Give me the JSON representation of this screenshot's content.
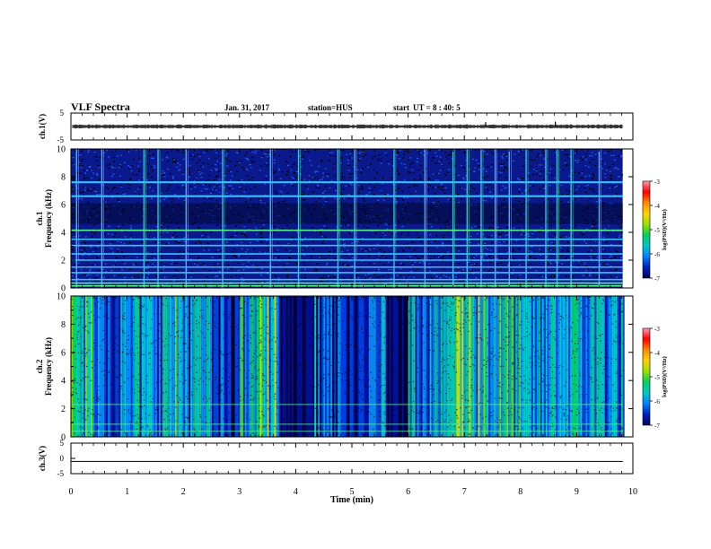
{
  "header": {
    "title": "VLF Spectra",
    "date": "Jan. 31, 2017",
    "station": "station=HUS",
    "start_label": "start",
    "start_ut": "UT =  8 : 40: 5"
  },
  "colorbar": {
    "label": "log(PSD)(V²/Hz)",
    "ticks": [
      "-3",
      "-4",
      "-5",
      "-6",
      "-7"
    ],
    "colors": [
      "#ff9aa8",
      "#ff0000",
      "#ff8a00",
      "#ffd400",
      "#9be000",
      "#00d060",
      "#00c8c8",
      "#0080ff",
      "#0020c0",
      "#000060"
    ]
  },
  "chart_data": [
    {
      "type": "line",
      "name": "ch1-waveform",
      "ylabel": "ch.1(V)",
      "ylim": [
        -5,
        5
      ],
      "yticks": [
        "5",
        "-5"
      ],
      "baseline": 0,
      "spikes": [
        {
          "x": 7.38,
          "y": 1.6
        },
        {
          "x": 8.62,
          "y": 1.8
        }
      ]
    },
    {
      "type": "heatmap",
      "name": "ch1-spectrogram",
      "ylabel": "Frequency (kHz)",
      "channel": "ch.1",
      "xlim": [
        0,
        10
      ],
      "ylim": [
        0,
        10
      ],
      "yticks": [
        "0",
        "2",
        "4",
        "6",
        "8",
        "10"
      ],
      "data_end_min": 9.82,
      "background": "#0a1a8c",
      "horizontal_lines_khz": [
        0.15,
        0.35,
        0.6,
        1.1,
        1.5,
        2.0,
        2.45,
        3.05,
        3.5,
        4.15,
        6.6,
        7.6
      ],
      "vertical_bursts_min": [
        0.1,
        0.55,
        1.3,
        1.55,
        2.05,
        2.7,
        3.55,
        4.05,
        4.75,
        5.05,
        5.75,
        6.3,
        6.8,
        7.05,
        7.3,
        7.55,
        7.8,
        8.1,
        8.45,
        8.65,
        8.9,
        9.4
      ]
    },
    {
      "type": "heatmap",
      "name": "ch2-spectrogram",
      "ylabel": "Frequency (kHz)",
      "channel": "ch.2",
      "xlim": [
        0,
        10
      ],
      "ylim": [
        0,
        10
      ],
      "yticks": [
        "0",
        "2",
        "4",
        "6",
        "8",
        "10"
      ],
      "data_end_min": 9.82,
      "background": "#000030",
      "activity_by_minute": [
        {
          "x0": 0.0,
          "x1": 0.5,
          "level": 0.75
        },
        {
          "x0": 0.5,
          "x1": 1.0,
          "level": 0.55
        },
        {
          "x0": 1.0,
          "x1": 1.5,
          "level": 0.6
        },
        {
          "x0": 1.5,
          "x1": 2.0,
          "level": 0.7
        },
        {
          "x0": 2.0,
          "x1": 2.5,
          "level": 0.65
        },
        {
          "x0": 2.5,
          "x1": 3.0,
          "level": 0.35
        },
        {
          "x0": 3.0,
          "x1": 3.3,
          "level": 0.7
        },
        {
          "x0": 3.3,
          "x1": 3.7,
          "level": 0.85
        },
        {
          "x0": 3.7,
          "x1": 4.3,
          "level": 0.2
        },
        {
          "x0": 4.3,
          "x1": 4.8,
          "level": 0.45
        },
        {
          "x0": 4.8,
          "x1": 5.3,
          "level": 0.3
        },
        {
          "x0": 5.3,
          "x1": 5.6,
          "level": 0.55
        },
        {
          "x0": 5.6,
          "x1": 6.0,
          "level": 0.2
        },
        {
          "x0": 6.0,
          "x1": 6.7,
          "level": 0.65
        },
        {
          "x0": 6.7,
          "x1": 7.4,
          "level": 0.95
        },
        {
          "x0": 7.4,
          "x1": 8.0,
          "level": 0.75
        },
        {
          "x0": 8.0,
          "x1": 8.5,
          "level": 0.6
        },
        {
          "x0": 8.5,
          "x1": 9.0,
          "level": 0.7
        },
        {
          "x0": 9.0,
          "x1": 9.5,
          "level": 0.65
        },
        {
          "x0": 9.5,
          "x1": 9.82,
          "level": 0.6
        }
      ],
      "horizontal_lines_khz": [
        0.4,
        0.9,
        2.3
      ]
    },
    {
      "type": "line",
      "name": "ch3-waveform",
      "ylabel": "ch.3(V)",
      "ylim": [
        -5,
        5
      ],
      "yticks": [
        "5",
        "0",
        "-5"
      ],
      "baseline": -1.0
    }
  ],
  "xaxis": {
    "label": "Time  (min)",
    "ticks": [
      "0",
      "1",
      "2",
      "3",
      "4",
      "5",
      "6",
      "7",
      "8",
      "9",
      "10"
    ],
    "range": [
      0,
      10
    ]
  }
}
